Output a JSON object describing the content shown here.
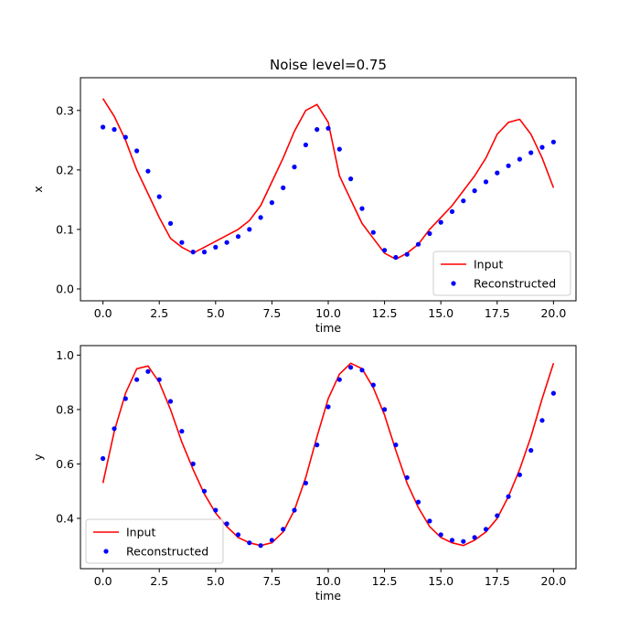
{
  "title": "Noise level=0.75",
  "colors": {
    "input": "#ff0000",
    "reconstructed": "#0000ff"
  },
  "chart_data": [
    {
      "type": "line",
      "title": "Noise level=0.75",
      "xlabel": "time",
      "ylabel": "x",
      "xlim": [
        -1.0,
        21.0
      ],
      "ylim": [
        -0.02,
        0.355
      ],
      "xticks": [
        0.0,
        2.5,
        5.0,
        7.5,
        10.0,
        12.5,
        15.0,
        17.5,
        20.0
      ],
      "xtick_labels": [
        "0.0",
        "2.5",
        "5.0",
        "7.5",
        "10.0",
        "12.5",
        "15.0",
        "17.5",
        "20.0"
      ],
      "yticks": [
        0.0,
        0.1,
        0.2,
        0.3
      ],
      "ytick_labels": [
        "0.0",
        "0.1",
        "0.2",
        "0.3"
      ],
      "legend_position": "lower-right",
      "noise_level": 0.75,
      "series": [
        {
          "name": "Input",
          "style": "line",
          "color": "#ff0000",
          "x": [
            0.0,
            0.5,
            1.0,
            1.5,
            2.0,
            2.5,
            3.0,
            3.5,
            4.0,
            4.5,
            5.0,
            5.5,
            6.0,
            6.5,
            7.0,
            7.5,
            8.0,
            8.5,
            9.0,
            9.5,
            10.0,
            10.5,
            11.0,
            11.5,
            12.0,
            12.5,
            13.0,
            13.5,
            14.0,
            14.5,
            15.0,
            15.5,
            16.0,
            16.5,
            17.0,
            17.5,
            18.0,
            18.5,
            19.0,
            19.5,
            20.0
          ],
          "y": [
            0.32,
            0.29,
            0.25,
            0.2,
            0.16,
            0.12,
            0.085,
            0.07,
            0.06,
            0.07,
            0.08,
            0.09,
            0.1,
            0.115,
            0.14,
            0.18,
            0.22,
            0.265,
            0.3,
            0.31,
            0.28,
            0.19,
            0.15,
            0.11,
            0.085,
            0.06,
            0.05,
            0.06,
            0.075,
            0.1,
            0.12,
            0.14,
            0.165,
            0.19,
            0.22,
            0.26,
            0.28,
            0.285,
            0.26,
            0.22,
            0.17
          ]
        },
        {
          "name": "Reconstructed",
          "style": "points",
          "color": "#0000ff",
          "x": [
            0.0,
            0.5,
            1.0,
            1.5,
            2.0,
            2.5,
            3.0,
            3.5,
            4.0,
            4.5,
            5.0,
            5.5,
            6.0,
            6.5,
            7.0,
            7.5,
            8.0,
            8.5,
            9.0,
            9.5,
            10.0,
            10.5,
            11.0,
            11.5,
            12.0,
            12.5,
            13.0,
            13.5,
            14.0,
            14.5,
            15.0,
            15.5,
            16.0,
            16.5,
            17.0,
            17.5,
            18.0,
            18.5,
            19.0,
            19.5,
            20.0
          ],
          "y": [
            0.272,
            0.268,
            0.255,
            0.232,
            0.198,
            0.155,
            0.11,
            0.078,
            0.062,
            0.062,
            0.07,
            0.078,
            0.088,
            0.1,
            0.12,
            0.145,
            0.17,
            0.205,
            0.242,
            0.268,
            0.27,
            0.235,
            0.185,
            0.135,
            0.095,
            0.065,
            0.053,
            0.058,
            0.075,
            0.093,
            0.112,
            0.13,
            0.148,
            0.165,
            0.18,
            0.195,
            0.207,
            0.218,
            0.229,
            0.238,
            0.247
          ]
        }
      ]
    },
    {
      "type": "line",
      "title": "",
      "xlabel": "time",
      "ylabel": "y",
      "xlim": [
        -1.0,
        21.0
      ],
      "ylim": [
        0.215,
        1.035
      ],
      "xticks": [
        0.0,
        2.5,
        5.0,
        7.5,
        10.0,
        12.5,
        15.0,
        17.5,
        20.0
      ],
      "xtick_labels": [
        "0.0",
        "2.5",
        "5.0",
        "7.5",
        "10.0",
        "12.5",
        "15.0",
        "17.5",
        "20.0"
      ],
      "yticks": [
        0.4,
        0.6,
        0.8,
        1.0
      ],
      "ytick_labels": [
        "0.4",
        "0.6",
        "0.8",
        "1.0"
      ],
      "legend_position": "lower-left",
      "series": [
        {
          "name": "Input",
          "style": "line",
          "color": "#ff0000",
          "x": [
            0.0,
            0.5,
            1.0,
            1.5,
            2.0,
            2.5,
            3.0,
            3.5,
            4.0,
            4.5,
            5.0,
            5.5,
            6.0,
            6.5,
            7.0,
            7.5,
            8.0,
            8.5,
            9.0,
            9.5,
            10.0,
            10.5,
            11.0,
            11.5,
            12.0,
            12.5,
            13.0,
            13.5,
            14.0,
            14.5,
            15.0,
            15.5,
            16.0,
            16.5,
            17.0,
            17.5,
            18.0,
            18.5,
            19.0,
            19.5,
            20.0
          ],
          "y": [
            0.53,
            0.72,
            0.86,
            0.95,
            0.96,
            0.9,
            0.8,
            0.68,
            0.58,
            0.49,
            0.42,
            0.37,
            0.33,
            0.31,
            0.3,
            0.31,
            0.35,
            0.43,
            0.55,
            0.7,
            0.84,
            0.93,
            0.97,
            0.95,
            0.88,
            0.78,
            0.65,
            0.53,
            0.44,
            0.37,
            0.33,
            0.31,
            0.3,
            0.32,
            0.35,
            0.4,
            0.48,
            0.58,
            0.7,
            0.84,
            0.97
          ]
        },
        {
          "name": "Reconstructed",
          "style": "points",
          "color": "#0000ff",
          "x": [
            0.0,
            0.5,
            1.0,
            1.5,
            2.0,
            2.5,
            3.0,
            3.5,
            4.0,
            4.5,
            5.0,
            5.5,
            6.0,
            6.5,
            7.0,
            7.5,
            8.0,
            8.5,
            9.0,
            9.5,
            10.0,
            10.5,
            11.0,
            11.5,
            12.0,
            12.5,
            13.0,
            13.5,
            14.0,
            14.5,
            15.0,
            15.5,
            16.0,
            16.5,
            17.0,
            17.5,
            18.0,
            18.5,
            19.0,
            19.5,
            20.0
          ],
          "y": [
            0.62,
            0.73,
            0.84,
            0.91,
            0.94,
            0.91,
            0.83,
            0.72,
            0.6,
            0.5,
            0.43,
            0.38,
            0.34,
            0.31,
            0.3,
            0.32,
            0.36,
            0.43,
            0.53,
            0.67,
            0.81,
            0.91,
            0.955,
            0.945,
            0.89,
            0.8,
            0.67,
            0.55,
            0.46,
            0.39,
            0.34,
            0.32,
            0.315,
            0.33,
            0.36,
            0.41,
            0.48,
            0.56,
            0.65,
            0.76,
            0.86
          ]
        }
      ]
    }
  ]
}
